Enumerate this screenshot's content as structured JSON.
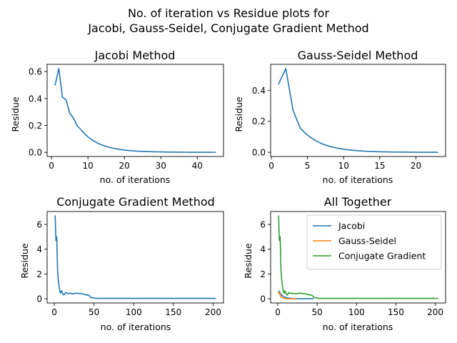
{
  "figure": {
    "suptitle_lines": [
      "No. of iteration vs Residue plots for",
      "Jacobi, Gauss-Seidel, Conjugate Gradient Method"
    ]
  },
  "chart_data": [
    {
      "type": "line",
      "title": "Jacobi Method",
      "xlabel": "no. of iterations",
      "ylabel": "Residue",
      "xlim": [
        -1.2,
        47.2
      ],
      "ylim": [
        -0.031,
        0.654
      ],
      "xticks": [
        0,
        10,
        20,
        30,
        40
      ],
      "yticks": [
        0.0,
        0.2,
        0.4,
        0.6
      ],
      "ytick_labels": [
        "0.0",
        "0.2",
        "0.4",
        "0.6"
      ],
      "series": [
        {
          "color": "#1f77b4",
          "x": [
            1,
            2,
            3,
            4,
            5,
            6,
            7,
            8,
            9,
            10,
            11,
            12,
            13,
            14,
            15,
            16,
            17,
            18,
            19,
            20,
            21,
            22,
            23,
            24,
            25,
            26,
            27,
            28,
            29,
            30,
            31,
            32,
            33,
            34,
            35,
            36,
            37,
            38,
            39,
            40,
            41,
            42,
            43,
            44,
            45
          ],
          "y": [
            0.5,
            0.623,
            0.41,
            0.39,
            0.29,
            0.255,
            0.2,
            0.17,
            0.14,
            0.115,
            0.095,
            0.078,
            0.064,
            0.053,
            0.044,
            0.036,
            0.03,
            0.025,
            0.021,
            0.017,
            0.014,
            0.012,
            0.01,
            0.008,
            0.007,
            0.006,
            0.005,
            0.004,
            0.0035,
            0.003,
            0.0025,
            0.002,
            0.0017,
            0.0014,
            0.0012,
            0.001,
            0.0008,
            0.0007,
            0.0006,
            0.0005,
            0.0004,
            0.0003,
            0.0003,
            0.0002,
            0.0002
          ]
        }
      ]
    },
    {
      "type": "line",
      "title": "Gauss-Seidel Method",
      "xlabel": "no. of iterations",
      "ylabel": "Residue",
      "xlim": [
        -0.1,
        24.1
      ],
      "ylim": [
        -0.027,
        0.567
      ],
      "xticks": [
        0,
        5,
        10,
        15,
        20
      ],
      "yticks": [
        0.0,
        0.2,
        0.4
      ],
      "ytick_labels": [
        "0.0",
        "0.2",
        "0.4"
      ],
      "series": [
        {
          "color": "#1f77b4",
          "x": [
            1,
            2,
            3,
            4,
            5,
            6,
            7,
            8,
            9,
            10,
            11,
            12,
            13,
            14,
            15,
            16,
            17,
            18,
            19,
            20,
            21,
            22,
            23
          ],
          "y": [
            0.44,
            0.54,
            0.27,
            0.155,
            0.11,
            0.078,
            0.055,
            0.039,
            0.028,
            0.02,
            0.014,
            0.01,
            0.007,
            0.005,
            0.0035,
            0.0025,
            0.0018,
            0.0013,
            0.0009,
            0.0006,
            0.0004,
            0.0003,
            0.0002
          ]
        }
      ]
    },
    {
      "type": "line",
      "title": "Conjugate Gradient Method",
      "xlabel": "no. of iterations",
      "ylabel": "Residue",
      "xlim": [
        -9.1,
        213.1
      ],
      "ylim": [
        -0.34,
        7.04
      ],
      "xticks": [
        0,
        50,
        100,
        150,
        200
      ],
      "yticks": [
        0,
        2,
        4,
        6
      ],
      "ytick_labels": [
        "0",
        "2",
        "4",
        "6"
      ],
      "series": [
        {
          "color": "#1f77b4",
          "x": [
            1,
            2,
            3,
            4,
            5,
            6,
            7,
            8,
            9,
            10,
            11,
            12,
            13,
            14,
            16,
            18,
            20,
            22,
            25,
            28,
            30,
            32,
            35,
            38,
            40,
            42,
            44,
            46,
            48,
            50,
            52,
            55,
            60,
            80,
            100,
            150,
            203
          ],
          "y": [
            6.7,
            4.7,
            5.0,
            2.4,
            1.5,
            1.0,
            0.6,
            0.45,
            0.65,
            0.5,
            0.35,
            0.3,
            0.38,
            0.5,
            0.45,
            0.42,
            0.45,
            0.4,
            0.42,
            0.45,
            0.44,
            0.42,
            0.4,
            0.36,
            0.3,
            0.32,
            0.25,
            0.1,
            0.08,
            0.06,
            0.04,
            0.03,
            0.03,
            0.03,
            0.03,
            0.03,
            0.03
          ]
        }
      ]
    },
    {
      "type": "line",
      "title": "All Together",
      "xlabel": "no. of iterations",
      "ylabel": "Residue",
      "xlim": [
        -9.1,
        213.1
      ],
      "ylim": [
        -0.34,
        7.04
      ],
      "xticks": [
        0,
        50,
        100,
        150,
        200
      ],
      "yticks": [
        0,
        2,
        4,
        6
      ],
      "ytick_labels": [
        "0",
        "2",
        "4",
        "6"
      ],
      "legend": "top-right",
      "series": [
        {
          "name": "Jacobi",
          "color": "#1f77b4",
          "x": [
            1,
            2,
            3,
            4,
            5,
            6,
            7,
            8,
            9,
            10,
            12,
            15,
            20,
            25,
            30,
            35,
            40,
            45
          ],
          "y": [
            0.5,
            0.623,
            0.41,
            0.39,
            0.29,
            0.255,
            0.2,
            0.17,
            0.14,
            0.115,
            0.078,
            0.044,
            0.017,
            0.007,
            0.003,
            0.0012,
            0.0005,
            0.0002
          ]
        },
        {
          "name": "Gauss-Seidel",
          "color": "#ff7f0e",
          "x": [
            1,
            2,
            3,
            4,
            5,
            6,
            7,
            8,
            10,
            12,
            15,
            20,
            23
          ],
          "y": [
            0.44,
            0.54,
            0.27,
            0.155,
            0.11,
            0.078,
            0.055,
            0.039,
            0.02,
            0.01,
            0.0035,
            0.0006,
            0.0002
          ]
        },
        {
          "name": "Conjugate Gradient",
          "color": "#2ca02c",
          "x": [
            1,
            2,
            3,
            4,
            5,
            6,
            7,
            8,
            9,
            10,
            11,
            12,
            13,
            14,
            16,
            18,
            20,
            22,
            25,
            28,
            30,
            32,
            35,
            38,
            40,
            42,
            44,
            46,
            48,
            50,
            52,
            55,
            60,
            80,
            100,
            150,
            203
          ],
          "y": [
            6.7,
            4.7,
            5.0,
            2.4,
            1.5,
            1.0,
            0.6,
            0.45,
            0.65,
            0.5,
            0.35,
            0.3,
            0.38,
            0.5,
            0.45,
            0.42,
            0.45,
            0.4,
            0.42,
            0.45,
            0.44,
            0.42,
            0.4,
            0.36,
            0.3,
            0.32,
            0.25,
            0.1,
            0.08,
            0.06,
            0.04,
            0.03,
            0.03,
            0.03,
            0.03,
            0.03,
            0.03
          ]
        }
      ]
    }
  ]
}
